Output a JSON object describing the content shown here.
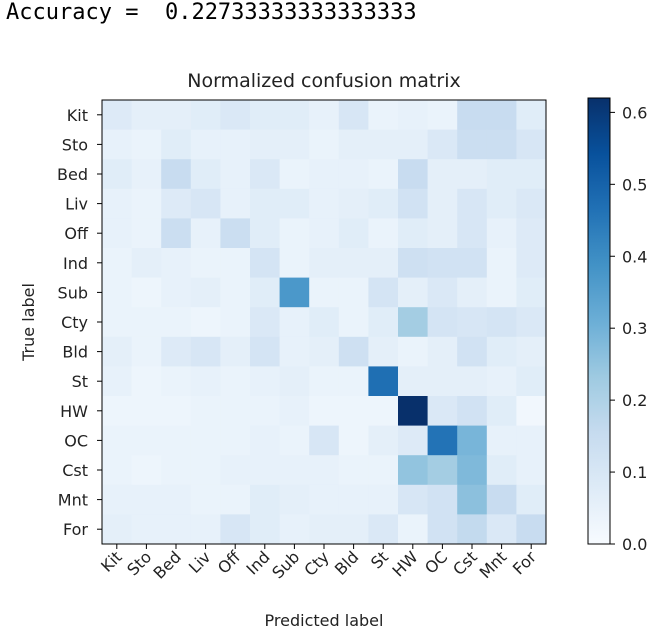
{
  "header": {
    "label": "Accuracy = ",
    "value": "0.22733333333333333"
  },
  "chart_data": {
    "type": "heatmap",
    "title": "Normalized confusion matrix",
    "xlabel": "Predicted label",
    "ylabel": "True label",
    "rows": [
      "Kit",
      "Sto",
      "Bed",
      "Liv",
      "Off",
      "Ind",
      "Sub",
      "Cty",
      "Bld",
      "St",
      "HW",
      "OC",
      "Cst",
      "Mnt",
      "For"
    ],
    "cols": [
      "Kit",
      "Sto",
      "Bed",
      "Liv",
      "Off",
      "Ind",
      "Sub",
      "Cty",
      "Bld",
      "St",
      "HW",
      "OC",
      "Cst",
      "Mnt",
      "For"
    ],
    "colormap": "Blues",
    "vmin": 0.0,
    "vmax": 0.62,
    "colorbar_ticks": [
      "0.0",
      "0.1",
      "0.2",
      "0.3",
      "0.4",
      "0.5",
      "0.6"
    ],
    "colorbar_tick_values": [
      0.0,
      0.1,
      0.2,
      0.3,
      0.4,
      0.5,
      0.6
    ],
    "values": [
      [
        0.08,
        0.06,
        0.06,
        0.07,
        0.09,
        0.07,
        0.07,
        0.05,
        0.1,
        0.04,
        0.05,
        0.04,
        0.15,
        0.15,
        0.07
      ],
      [
        0.05,
        0.04,
        0.07,
        0.05,
        0.05,
        0.06,
        0.06,
        0.04,
        0.06,
        0.06,
        0.06,
        0.09,
        0.14,
        0.14,
        0.1
      ],
      [
        0.07,
        0.05,
        0.15,
        0.07,
        0.05,
        0.09,
        0.04,
        0.05,
        0.05,
        0.04,
        0.15,
        0.06,
        0.06,
        0.07,
        0.07
      ],
      [
        0.05,
        0.04,
        0.08,
        0.1,
        0.05,
        0.07,
        0.07,
        0.05,
        0.06,
        0.07,
        0.12,
        0.06,
        0.1,
        0.07,
        0.09
      ],
      [
        0.05,
        0.04,
        0.14,
        0.05,
        0.14,
        0.07,
        0.04,
        0.05,
        0.07,
        0.04,
        0.07,
        0.06,
        0.1,
        0.05,
        0.08
      ],
      [
        0.04,
        0.06,
        0.05,
        0.04,
        0.04,
        0.11,
        0.04,
        0.06,
        0.06,
        0.06,
        0.13,
        0.12,
        0.12,
        0.04,
        0.08
      ],
      [
        0.04,
        0.03,
        0.05,
        0.06,
        0.04,
        0.07,
        0.37,
        0.04,
        0.04,
        0.11,
        0.06,
        0.09,
        0.06,
        0.04,
        0.07
      ],
      [
        0.04,
        0.04,
        0.04,
        0.03,
        0.04,
        0.09,
        0.05,
        0.07,
        0.04,
        0.07,
        0.22,
        0.11,
        0.1,
        0.11,
        0.09
      ],
      [
        0.06,
        0.04,
        0.08,
        0.1,
        0.06,
        0.11,
        0.05,
        0.06,
        0.13,
        0.06,
        0.04,
        0.06,
        0.12,
        0.07,
        0.06
      ],
      [
        0.05,
        0.03,
        0.04,
        0.05,
        0.04,
        0.05,
        0.06,
        0.04,
        0.04,
        0.47,
        0.06,
        0.06,
        0.06,
        0.05,
        0.07
      ],
      [
        0.03,
        0.03,
        0.03,
        0.04,
        0.04,
        0.04,
        0.05,
        0.03,
        0.03,
        0.03,
        0.62,
        0.09,
        0.12,
        0.07,
        0.02
      ],
      [
        0.04,
        0.04,
        0.04,
        0.04,
        0.04,
        0.05,
        0.04,
        0.1,
        0.03,
        0.06,
        0.08,
        0.46,
        0.29,
        0.05,
        0.05
      ],
      [
        0.04,
        0.03,
        0.04,
        0.04,
        0.05,
        0.05,
        0.05,
        0.05,
        0.04,
        0.04,
        0.25,
        0.22,
        0.28,
        0.07,
        0.05
      ],
      [
        0.05,
        0.05,
        0.05,
        0.04,
        0.04,
        0.07,
        0.06,
        0.05,
        0.05,
        0.05,
        0.1,
        0.12,
        0.26,
        0.15,
        0.07
      ],
      [
        0.06,
        0.05,
        0.05,
        0.05,
        0.1,
        0.07,
        0.05,
        0.06,
        0.06,
        0.09,
        0.04,
        0.12,
        0.16,
        0.09,
        0.15
      ]
    ]
  }
}
